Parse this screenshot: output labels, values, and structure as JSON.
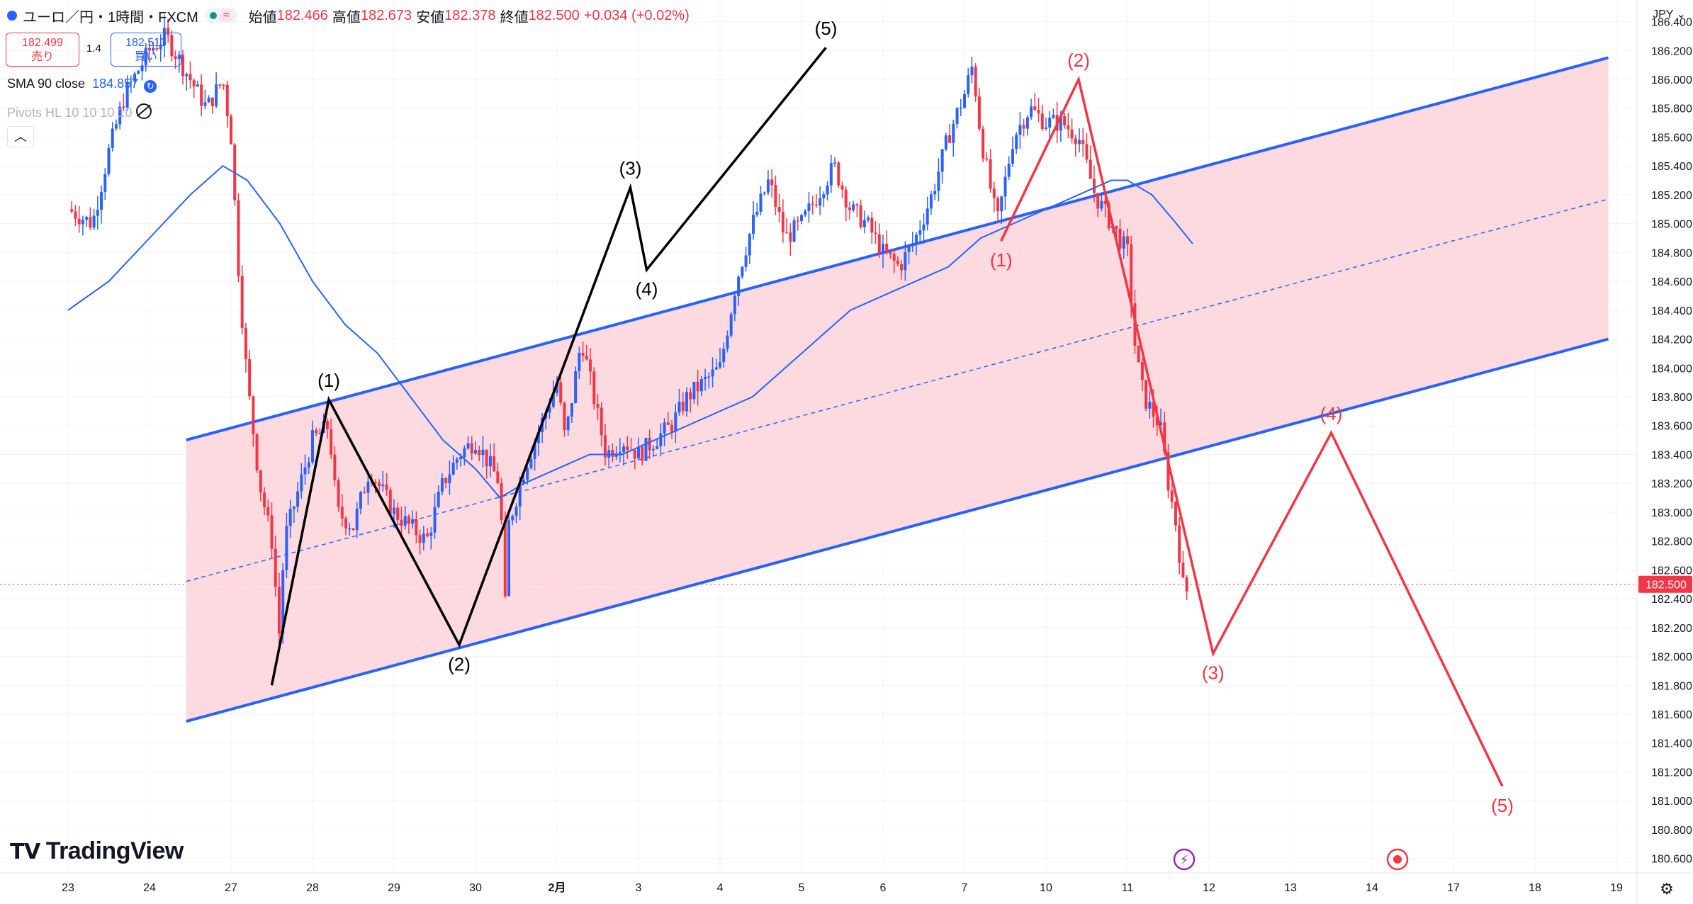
{
  "header": {
    "title": "ユーロ／円・1時間・FXCM",
    "open_label": "始値",
    "open_value": "182.466",
    "high_label": "高値",
    "high_value": "182.673",
    "low_label": "安値",
    "low_value": "182.378",
    "close_label": "終値",
    "close_value": "182.500",
    "change": "+0.034 (+0.02%)"
  },
  "trade": {
    "sell_price": "182.499",
    "sell_label": "売り",
    "spread": "1.4",
    "buy_price": "182.513",
    "buy_label": "買い"
  },
  "indicators": {
    "sma_label": "SMA 90 close",
    "sma_value": "184.857",
    "pivots_label": "Pivots HL 10 10 10 10"
  },
  "currency": "JPY",
  "logo_text": "TradingView",
  "colors": {
    "up": "#089981",
    "down": "#f23645",
    "channel": "#2962ff",
    "channel_fill": "#fbd3da",
    "wave_black": "#000000",
    "wave_red": "#f23645",
    "sma": "#2962ff"
  },
  "chart_data": {
    "type": "candlestick",
    "symbol": "EUR/JPY",
    "interval": "1h",
    "x_ticks": [
      "23",
      "24",
      "27",
      "28",
      "29",
      "30",
      "2月",
      "3",
      "4",
      "5",
      "6",
      "7",
      "10",
      "11",
      "12",
      "13",
      "14",
      "17",
      "18",
      "19"
    ],
    "y_ticks": [
      "186.400",
      "186.200",
      "186.000",
      "185.800",
      "185.600",
      "185.400",
      "185.200",
      "185.000",
      "184.800",
      "184.600",
      "184.400",
      "184.200",
      "184.000",
      "183.800",
      "183.600",
      "183.400",
      "183.200",
      "183.000",
      "182.800",
      "182.600",
      "182.400",
      "182.200",
      "182.000",
      "181.800",
      "181.600",
      "181.400",
      "181.200",
      "181.000",
      "180.800",
      "180.600"
    ],
    "ylim": [
      180.5,
      186.55
    ],
    "last_price": "182.500",
    "price_path": [
      [
        0.0,
        185.1
      ],
      [
        0.3,
        185.0
      ],
      [
        0.5,
        185.5
      ],
      [
        0.7,
        185.9
      ],
      [
        1.0,
        186.2
      ],
      [
        1.2,
        186.3
      ],
      [
        1.5,
        186.0
      ],
      [
        1.7,
        185.8
      ],
      [
        1.9,
        186.0
      ],
      [
        2.0,
        185.6
      ],
      [
        2.1,
        184.6
      ],
      [
        2.2,
        183.9
      ],
      [
        2.35,
        183.2
      ],
      [
        2.5,
        182.8
      ],
      [
        2.6,
        182.1
      ],
      [
        2.65,
        182.8
      ],
      [
        2.8,
        183.1
      ],
      [
        3.0,
        183.5
      ],
      [
        3.2,
        183.6
      ],
      [
        3.3,
        183.0
      ],
      [
        3.5,
        182.9
      ],
      [
        3.7,
        183.3
      ],
      [
        3.8,
        183.2
      ],
      [
        4.0,
        183.0
      ],
      [
        4.2,
        182.9
      ],
      [
        4.4,
        182.8
      ],
      [
        4.6,
        183.2
      ],
      [
        4.8,
        183.4
      ],
      [
        5.0,
        183.5
      ],
      [
        5.2,
        183.3
      ],
      [
        5.3,
        183.2
      ],
      [
        5.36,
        182.3
      ],
      [
        5.4,
        182.9
      ],
      [
        5.6,
        183.3
      ],
      [
        5.8,
        183.6
      ],
      [
        6.0,
        183.9
      ],
      [
        6.1,
        183.5
      ],
      [
        6.3,
        184.2
      ],
      [
        6.45,
        183.8
      ],
      [
        6.6,
        183.4
      ],
      [
        6.8,
        183.5
      ],
      [
        7.0,
        183.4
      ],
      [
        7.2,
        183.5
      ],
      [
        7.4,
        183.6
      ],
      [
        7.6,
        183.8
      ],
      [
        7.8,
        183.9
      ],
      [
        8.0,
        184.0
      ],
      [
        8.2,
        184.6
      ],
      [
        8.4,
        185.0
      ],
      [
        8.6,
        185.3
      ],
      [
        8.8,
        184.9
      ],
      [
        9.0,
        185.0
      ],
      [
        9.2,
        185.2
      ],
      [
        9.4,
        185.4
      ],
      [
        9.6,
        185.1
      ],
      [
        9.8,
        185.0
      ],
      [
        10.0,
        184.8
      ],
      [
        10.2,
        184.7
      ],
      [
        10.4,
        184.9
      ],
      [
        10.6,
        185.2
      ],
      [
        10.8,
        185.6
      ],
      [
        11.0,
        185.9
      ],
      [
        11.1,
        186.1
      ],
      [
        11.2,
        185.6
      ],
      [
        11.4,
        185.0
      ],
      [
        11.6,
        185.6
      ],
      [
        11.8,
        185.8
      ],
      [
        12.0,
        185.7
      ],
      [
        12.2,
        185.7
      ],
      [
        12.4,
        185.6
      ],
      [
        12.6,
        185.2
      ],
      [
        12.8,
        185.0
      ],
      [
        13.0,
        184.8
      ],
      [
        13.1,
        184.1
      ],
      [
        13.2,
        183.8
      ],
      [
        13.3,
        183.7
      ],
      [
        13.4,
        183.6
      ],
      [
        13.5,
        183.2
      ],
      [
        13.6,
        182.9
      ],
      [
        13.7,
        182.4
      ],
      [
        13.75,
        182.5
      ]
    ],
    "sma90": [
      [
        0.0,
        184.4
      ],
      [
        0.5,
        184.6
      ],
      [
        1.0,
        184.9
      ],
      [
        1.5,
        185.2
      ],
      [
        1.9,
        185.4
      ],
      [
        2.2,
        185.3
      ],
      [
        2.6,
        185.0
      ],
      [
        3.0,
        184.6
      ],
      [
        3.4,
        184.3
      ],
      [
        3.8,
        184.1
      ],
      [
        4.2,
        183.8
      ],
      [
        4.6,
        183.5
      ],
      [
        5.0,
        183.3
      ],
      [
        5.3,
        183.1
      ],
      [
        5.6,
        183.2
      ],
      [
        6.0,
        183.3
      ],
      [
        6.4,
        183.4
      ],
      [
        6.8,
        183.4
      ],
      [
        7.2,
        183.5
      ],
      [
        7.6,
        183.6
      ],
      [
        8.0,
        183.7
      ],
      [
        8.4,
        183.8
      ],
      [
        8.8,
        184.0
      ],
      [
        9.2,
        184.2
      ],
      [
        9.6,
        184.4
      ],
      [
        10.0,
        184.5
      ],
      [
        10.4,
        184.6
      ],
      [
        10.8,
        184.7
      ],
      [
        11.2,
        184.9
      ],
      [
        11.6,
        185.0
      ],
      [
        12.0,
        185.1
      ],
      [
        12.4,
        185.2
      ],
      [
        12.8,
        185.3
      ],
      [
        13.0,
        185.3
      ],
      [
        13.3,
        185.2
      ],
      [
        13.6,
        185.0
      ],
      [
        13.8,
        184.86
      ]
    ],
    "channel": {
      "upper": [
        [
          1.45,
          183.5
        ],
        [
          18.9,
          186.15
        ]
      ],
      "lower": [
        [
          1.45,
          181.55
        ],
        [
          18.9,
          184.2
        ]
      ],
      "mid": [
        [
          1.45,
          182.52
        ],
        [
          18.9,
          185.17
        ]
      ]
    },
    "wave_black": {
      "points": [
        [
          2.5,
          181.8
        ],
        [
          3.2,
          183.78
        ],
        [
          4.8,
          182.08
        ],
        [
          6.9,
          185.25
        ],
        [
          7.1,
          184.68
        ],
        [
          9.3,
          186.22
        ]
      ],
      "labels": [
        "",
        "(1)",
        "(2)",
        "(3)",
        "(4)",
        "(5)"
      ]
    },
    "wave_red": {
      "points": [
        [
          11.45,
          184.88
        ],
        [
          12.4,
          186.0
        ],
        [
          14.05,
          182.02
        ],
        [
          15.5,
          183.55
        ],
        [
          17.6,
          181.1
        ]
      ],
      "labels": [
        "(1)",
        "(2)",
        "(3)",
        "(4)",
        "(5)"
      ]
    }
  }
}
